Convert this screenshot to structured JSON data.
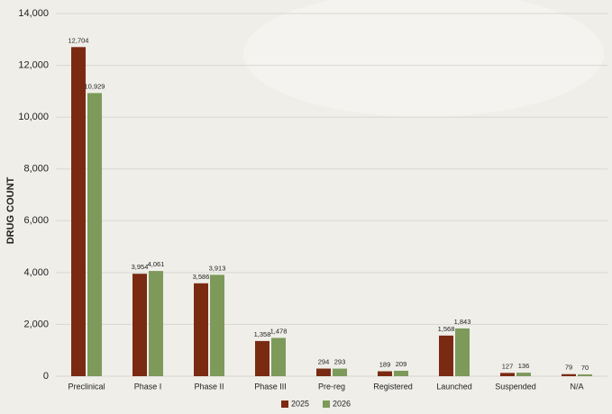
{
  "chart_data": {
    "type": "bar",
    "ylabel": "DRUG COUNT",
    "categories": [
      "Preclinical",
      "Phase I",
      "Phase II",
      "Phase III",
      "Pre-reg",
      "Registered",
      "Launched",
      "Suspended",
      "N/A"
    ],
    "series": [
      {
        "name": "2025",
        "color": "#7b2a12",
        "values": [
          12704,
          3954,
          3586,
          1358,
          294,
          189,
          1568,
          127,
          79
        ],
        "value_labels": [
          "12,704",
          "3,954",
          "3,586",
          "1,358",
          "294",
          "189",
          "1,568",
          "127",
          "79"
        ]
      },
      {
        "name": "2026",
        "color": "#7d9a5a",
        "values": [
          10929,
          4061,
          3913,
          1478,
          293,
          209,
          1843,
          136,
          70
        ],
        "value_labels": [
          "10,929",
          "4,061",
          "3,913",
          "1,478",
          "293",
          "209",
          "1,843",
          "136",
          "70"
        ]
      }
    ],
    "ylim": [
      0,
      14000
    ],
    "yticks": [
      0,
      {
        "value": 2000,
        "label": "2,000"
      },
      {
        "value": 4000,
        "label": "4,000"
      },
      {
        "value": 6000,
        "label": "6,000"
      },
      {
        "value": 8000,
        "label": "8,000"
      },
      {
        "value": 10000,
        "label": "10,000"
      },
      {
        "value": 12000,
        "label": "12,000"
      },
      {
        "value": 14000,
        "label": "14,000"
      }
    ],
    "grid": true,
    "legend": "bottom"
  }
}
